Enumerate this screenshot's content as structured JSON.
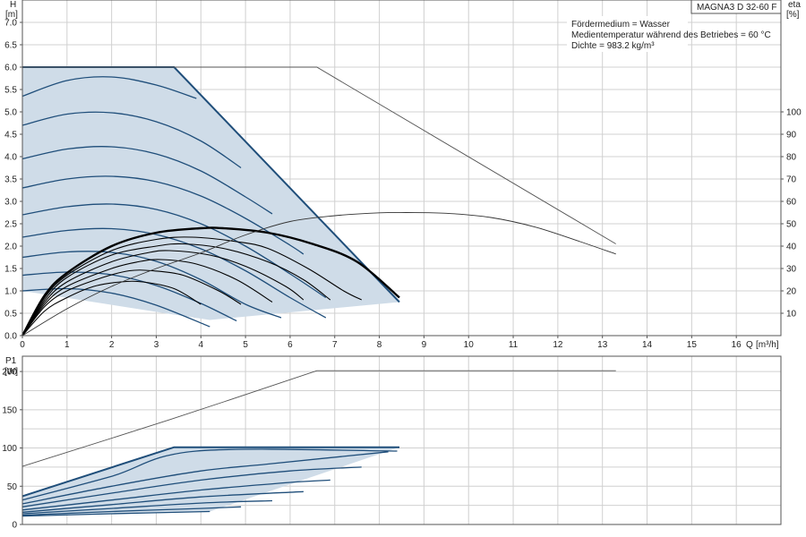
{
  "chart_data": [
    {
      "type": "line",
      "model": "MAGNA3 D 32-60 F",
      "info": [
        "Fördermedium = Wasser",
        "Medientemperatur während des Betriebes = 60 °C",
        "Dichte = 983.2 kg/m³"
      ],
      "y_label": "H",
      "y_unit": "[m]",
      "y2_label": "eta",
      "y2_unit": "[%]",
      "x_label": "Q",
      "x_unit": "[m³/h]",
      "xlim": [
        0,
        17
      ],
      "ylim": [
        0,
        7.5
      ],
      "y2lim": [
        0,
        150
      ],
      "x_ticks": [
        "0",
        "1",
        "2",
        "3",
        "4",
        "5",
        "6",
        "7",
        "8",
        "9",
        "10",
        "11",
        "12",
        "13",
        "14",
        "15",
        "16"
      ],
      "y_ticks": [
        "0.0",
        "0.5",
        "1.0",
        "1.5",
        "2.0",
        "2.5",
        "3.0",
        "3.5",
        "4.0",
        "4.5",
        "5.0",
        "5.5",
        "6.0",
        "6.5",
        "7.0"
      ],
      "y2_ticks": [
        "10",
        "20",
        "30",
        "40",
        "50",
        "60",
        "70",
        "80",
        "90",
        "100"
      ],
      "grid": true,
      "operating_area": {
        "upper_boundary": [
          [
            0,
            6.0
          ],
          [
            3.4,
            6.0
          ],
          [
            8.45,
            0.75
          ]
        ],
        "lower_boundary": [
          [
            0,
            1.0
          ],
          [
            3.2,
            0.5
          ],
          [
            4.2,
            0.35
          ],
          [
            8.45,
            0.75
          ]
        ]
      },
      "head_curves": [
        {
          "h0": 6.0,
          "points": [
            [
              0,
              6.0
            ],
            [
              3.4,
              6.0
            ]
          ]
        },
        {
          "h0": 5.35,
          "points": [
            [
              0,
              5.35
            ],
            [
              1.0,
              5.7
            ],
            [
              2.0,
              5.78
            ],
            [
              3.0,
              5.6
            ],
            [
              3.9,
              5.3
            ]
          ]
        },
        {
          "h0": 4.7,
          "points": [
            [
              0,
              4.7
            ],
            [
              1.0,
              4.95
            ],
            [
              2.0,
              4.98
            ],
            [
              3.0,
              4.78
            ],
            [
              4.0,
              4.35
            ],
            [
              4.9,
              3.75
            ]
          ]
        },
        {
          "h0": 3.95,
          "points": [
            [
              0,
              3.95
            ],
            [
              1.0,
              4.17
            ],
            [
              2.0,
              4.22
            ],
            [
              3.0,
              4.06
            ],
            [
              4.0,
              3.68
            ],
            [
              5.0,
              3.1
            ],
            [
              5.6,
              2.72
            ]
          ]
        },
        {
          "h0": 3.3,
          "points": [
            [
              0,
              3.3
            ],
            [
              1.0,
              3.5
            ],
            [
              2.0,
              3.56
            ],
            [
              3.0,
              3.44
            ],
            [
              4.0,
              3.12
            ],
            [
              5.0,
              2.62
            ],
            [
              6.0,
              2.02
            ],
            [
              6.3,
              1.82
            ]
          ]
        },
        {
          "h0": 2.7,
          "points": [
            [
              0,
              2.7
            ],
            [
              1.0,
              2.88
            ],
            [
              2.0,
              2.94
            ],
            [
              3.0,
              2.82
            ],
            [
              4.0,
              2.5
            ],
            [
              5.0,
              2.0
            ],
            [
              6.0,
              1.38
            ],
            [
              6.8,
              0.85
            ]
          ]
        },
        {
          "h0": 2.2,
          "points": [
            [
              0,
              2.2
            ],
            [
              1.0,
              2.35
            ],
            [
              2.0,
              2.39
            ],
            [
              3.0,
              2.26
            ],
            [
              4.0,
              1.94
            ],
            [
              5.0,
              1.45
            ],
            [
              6.0,
              0.85
            ],
            [
              6.8,
              0.4
            ]
          ]
        },
        {
          "h0": 1.75,
          "points": [
            [
              0,
              1.75
            ],
            [
              1.0,
              1.87
            ],
            [
              2.0,
              1.86
            ],
            [
              3.0,
              1.66
            ],
            [
              4.0,
              1.25
            ],
            [
              5.0,
              0.7
            ],
            [
              5.8,
              0.4
            ]
          ]
        },
        {
          "h0": 1.35,
          "points": [
            [
              0,
              1.35
            ],
            [
              1.0,
              1.42
            ],
            [
              2.0,
              1.36
            ],
            [
              3.0,
              1.12
            ],
            [
              4.0,
              0.72
            ],
            [
              4.8,
              0.33
            ]
          ]
        },
        {
          "h0": 1.0,
          "points": [
            [
              0,
              1.0
            ],
            [
              1.0,
              1.05
            ],
            [
              2.0,
              0.95
            ],
            [
              3.0,
              0.68
            ],
            [
              4.2,
              0.2
            ]
          ]
        }
      ],
      "eta_curves": [
        {
          "points": [
            [
              0,
              0
            ],
            [
              0.5,
              18
            ],
            [
              1.0,
              28
            ],
            [
              2.0,
              40
            ],
            [
              3.0,
              46
            ],
            [
              4.0,
              48
            ],
            [
              4.5,
              48
            ],
            [
              5.5,
              46
            ],
            [
              6.5,
              41
            ],
            [
              7.5,
              33
            ],
            [
              8.45,
              17
            ]
          ]
        },
        {
          "points": [
            [
              0,
              0
            ],
            [
              0.5,
              17
            ],
            [
              1.0,
              27
            ],
            [
              2.0,
              38
            ],
            [
              3.0,
              43
            ],
            [
              3.8,
              44
            ],
            [
              4.8,
              42
            ],
            [
              5.5,
              39
            ],
            [
              6.4,
              30
            ],
            [
              7.2,
              20
            ],
            [
              7.6,
              16
            ]
          ]
        },
        {
          "points": [
            [
              0,
              0
            ],
            [
              0.5,
              16
            ],
            [
              1.0,
              26
            ],
            [
              2.0,
              36
            ],
            [
              3.0,
              40
            ],
            [
              3.6,
              41
            ],
            [
              4.5,
              39
            ],
            [
              5.5,
              33
            ],
            [
              6.3,
              25
            ],
            [
              6.9,
              16
            ]
          ]
        },
        {
          "points": [
            [
              0,
              0
            ],
            [
              0.5,
              15
            ],
            [
              1.0,
              24
            ],
            [
              2.0,
              33
            ],
            [
              2.8,
              37
            ],
            [
              3.3,
              38
            ],
            [
              4.2,
              36
            ],
            [
              5.0,
              31
            ],
            [
              5.9,
              22
            ],
            [
              6.3,
              16
            ]
          ]
        },
        {
          "points": [
            [
              0,
              0
            ],
            [
              0.5,
              14
            ],
            [
              1.0,
              22
            ],
            [
              2.0,
              30
            ],
            [
              2.6,
              33
            ],
            [
              3.1,
              34
            ],
            [
              3.9,
              32
            ],
            [
              4.8,
              25
            ],
            [
              5.6,
              15
            ]
          ]
        },
        {
          "points": [
            [
              0,
              0
            ],
            [
              0.5,
              13
            ],
            [
              1.0,
              20
            ],
            [
              1.8,
              26
            ],
            [
              2.4,
              29
            ],
            [
              2.9,
              29
            ],
            [
              3.6,
              27
            ],
            [
              4.4,
              20
            ],
            [
              4.9,
              14
            ]
          ]
        },
        {
          "points": [
            [
              0,
              0
            ],
            [
              0.5,
              11
            ],
            [
              1.0,
              17
            ],
            [
              1.6,
              22
            ],
            [
              2.2,
              24
            ],
            [
              2.7,
              24
            ],
            [
              3.4,
              21
            ],
            [
              4.0,
              14
            ]
          ]
        }
      ],
      "max_head_curve": [
        [
          0,
          6.0
        ],
        [
          6.6,
          6.0
        ],
        [
          13.3,
          2.05
        ]
      ],
      "max_eta_curve": [
        [
          0,
          0
        ],
        [
          1.0,
          12
        ],
        [
          2.0,
          22
        ],
        [
          3.0,
          30
        ],
        [
          4.0,
          37
        ],
        [
          5.0,
          45
        ],
        [
          6.0,
          51
        ],
        [
          7.0,
          53.6
        ],
        [
          8.0,
          54.9
        ],
        [
          8.6,
          55
        ],
        [
          9.5,
          54.7
        ],
        [
          10.5,
          52.8
        ],
        [
          11.5,
          48.5
        ],
        [
          12.5,
          42
        ],
        [
          13.3,
          36.5
        ]
      ]
    },
    {
      "type": "line",
      "y_label": "P1",
      "y_unit": "[W]",
      "xlim": [
        0,
        17
      ],
      "ylim": [
        0,
        220
      ],
      "y_ticks": [
        "0",
        "50",
        "100",
        "150",
        "200"
      ],
      "grid": true,
      "operating_area": {
        "upper_boundary": [
          [
            0,
            37
          ],
          [
            3.4,
            101
          ],
          [
            8.45,
            101
          ]
        ],
        "lower_boundary": [
          [
            0,
            12
          ],
          [
            4.2,
            17
          ],
          [
            8.45,
            101
          ]
        ]
      },
      "power_curves": [
        {
          "points": [
            [
              0,
              37
            ],
            [
              3.4,
              101
            ],
            [
              8.45,
              101
            ]
          ]
        },
        {
          "points": [
            [
              0,
              32
            ],
            [
              2.0,
              63
            ],
            [
              3.9,
              96
            ],
            [
              8.4,
              96
            ]
          ]
        },
        {
          "points": [
            [
              0,
              27
            ],
            [
              2.0,
              50
            ],
            [
              4.0,
              70
            ],
            [
              5.5,
              79
            ],
            [
              8.2,
              95
            ]
          ]
        },
        {
          "points": [
            [
              0,
              23
            ],
            [
              2.0,
              41
            ],
            [
              4.0,
              58
            ],
            [
              6.0,
              70
            ],
            [
              7.6,
              75
            ]
          ]
        },
        {
          "points": [
            [
              0,
              19
            ],
            [
              2.0,
              32
            ],
            [
              4.0,
              45
            ],
            [
              6.0,
              55
            ],
            [
              6.9,
              58
            ]
          ]
        },
        {
          "points": [
            [
              0,
              16
            ],
            [
              2.0,
              26
            ],
            [
              4.0,
              36
            ],
            [
              6.3,
              43
            ]
          ]
        },
        {
          "points": [
            [
              0,
              14
            ],
            [
              2.0,
              21
            ],
            [
              4.0,
              28
            ],
            [
              5.6,
              31
            ]
          ]
        },
        {
          "points": [
            [
              0,
              12
            ],
            [
              2.0,
              17
            ],
            [
              4.0,
              21
            ],
            [
              4.9,
              23
            ]
          ]
        },
        {
          "points": [
            [
              0,
              11
            ],
            [
              2.0,
              14
            ],
            [
              4.2,
              17
            ]
          ]
        }
      ],
      "max_power_curve": [
        [
          0,
          76
        ],
        [
          3.3,
          137
        ],
        [
          6.6,
          201
        ],
        [
          13.3,
          201
        ]
      ]
    }
  ]
}
